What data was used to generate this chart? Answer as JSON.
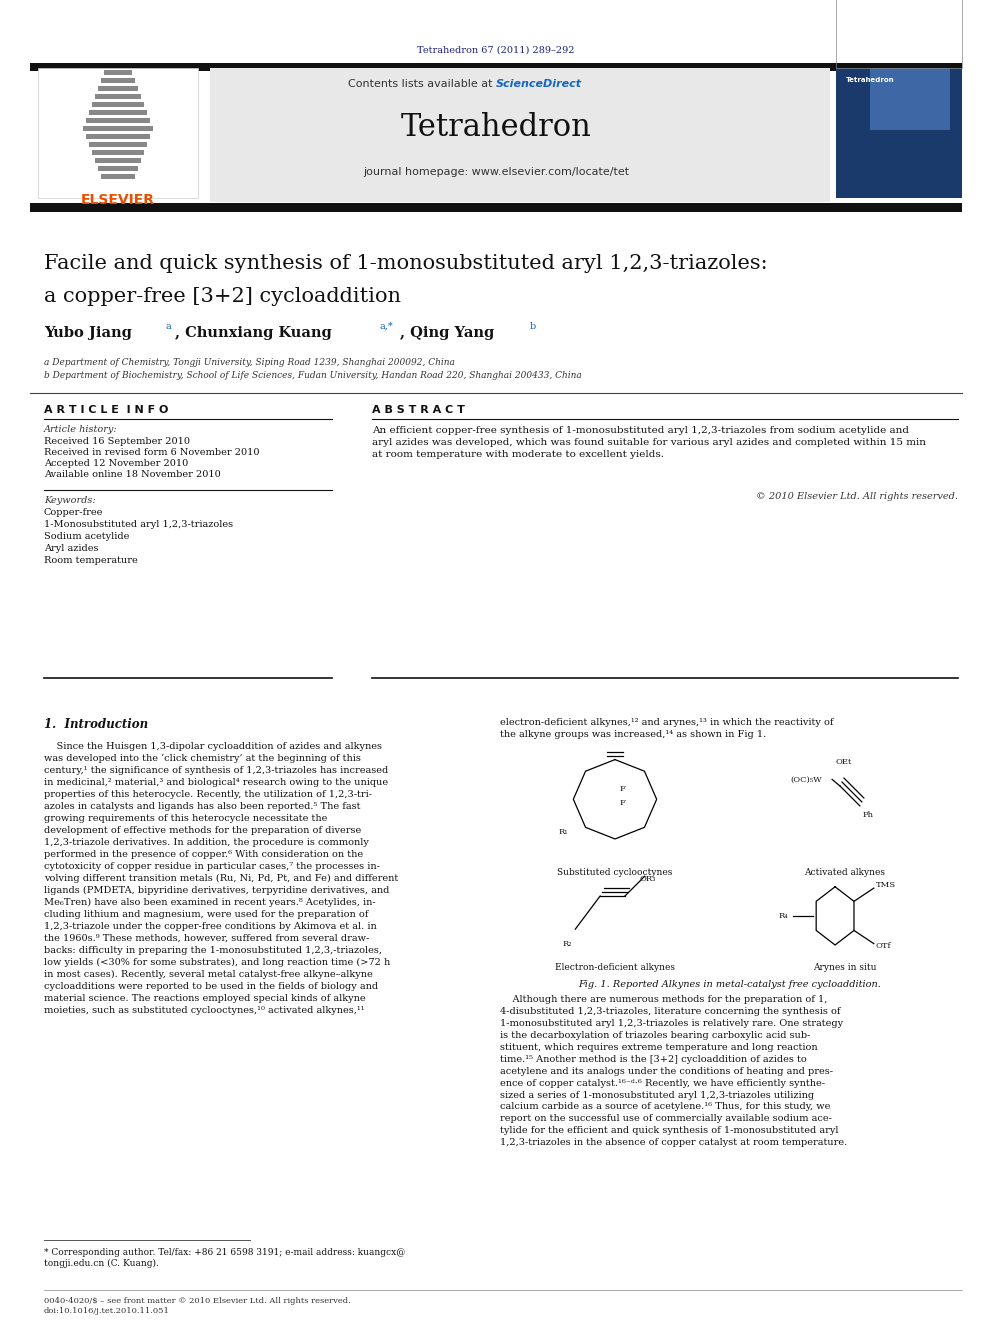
{
  "page_width": 9.92,
  "page_height": 13.23,
  "bg_color": "#ffffff",
  "journal_ref": "Tetrahedron 67 (2011) 289–292",
  "journal_ref_color": "#1a237e",
  "header_bg": "#e8e8e8",
  "header_journal": "Tetrahedron",
  "header_contents": "Contents lists available at",
  "header_sciencedirect": "ScienceDirect",
  "header_sciencedirect_color": "#1565c0",
  "header_homepage": "journal homepage: www.elsevier.com/locate/tet",
  "elsevier_color": "#e65100",
  "title_line1": "Facile and quick synthesis of 1-monosubstituted aryl 1,2,3-triazoles:",
  "title_line2": "a copper-free [3+2] cycloaddition",
  "affil_a": "a Department of Chemistry, Tongji University, Siping Road 1239, Shanghai 200092, China",
  "affil_b": "b Department of Biochemistry, School of Life Sciences, Fudan University, Handan Road 220, Shanghai 200433, China",
  "article_info_title": "A R T I C L E  I N F O",
  "abstract_title": "A B S T R A C T",
  "article_history_label": "Article history:",
  "received1": "Received 16 September 2010",
  "received2": "Received in revised form 6 November 2010",
  "accepted": "Accepted 12 November 2010",
  "available": "Available online 18 November 2010",
  "keywords_label": "Keywords:",
  "keyword1": "Copper-free",
  "keyword2": "1-Monosubstituted aryl 1,2,3-triazoles",
  "keyword3": "Sodium acetylide",
  "keyword4": "Aryl azides",
  "keyword5": "Room temperature",
  "abstract_text": "An efficient copper-free synthesis of 1-monosubstituted aryl 1,2,3-triazoles from sodium acetylide and\naryl azides was developed, which was found suitable for various aryl azides and completed within 15 min\nat room temperature with moderate to excellent yields.",
  "copyright": "© 2010 Elsevier Ltd. All rights reserved.",
  "intro_title": "1.  Introduction",
  "fig1_caption": "Fig. 1. Reported Alkynes in metal-catalyst free cycloaddition.",
  "footnote_star": "* Corresponding author. Tel/fax: +86 21 6598 3191; e-mail address: kuangcx@\ntongji.edu.cn (C. Kuang).",
  "footer_text": "0040-4020/$ – see front matter © 2010 Elsevier Ltd. All rights reserved.\ndoi:10.1016/j.tet.2010.11.051",
  "thick_bar_color": "#111111"
}
